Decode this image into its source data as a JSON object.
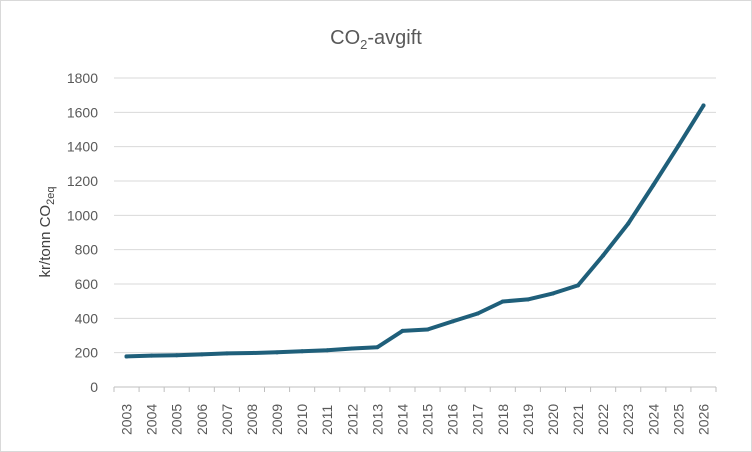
{
  "chart_data": {
    "type": "line",
    "title": {
      "main": "CO",
      "sub": "2",
      "rest": "-avgift"
    },
    "xlabel": "",
    "ylabel": {
      "main": "kr/tonn CO",
      "sub": "2eq"
    },
    "ylim": [
      0,
      1800
    ],
    "yticks": [
      0,
      200,
      400,
      600,
      800,
      1000,
      1200,
      1400,
      1600,
      1800
    ],
    "grid": true,
    "legend": "none",
    "line_color": "#1f5f7a",
    "categories": [
      "2003",
      "2004",
      "2005",
      "2006",
      "2007",
      "2008",
      "2009",
      "2010",
      "2011",
      "2012",
      "2013",
      "2014",
      "2015",
      "2016",
      "2017",
      "2018",
      "2019",
      "2020",
      "2021",
      "2022",
      "2023",
      "2024",
      "2025",
      "2026"
    ],
    "series": [
      {
        "name": "CO2-avgift",
        "values": [
          178,
          183,
          185,
          190,
          196,
          198,
          202,
          208,
          214,
          224,
          232,
          327,
          335,
          382,
          428,
          498,
          510,
          545,
          592,
          766,
          952,
          1176,
          1405,
          1640
        ]
      }
    ]
  }
}
